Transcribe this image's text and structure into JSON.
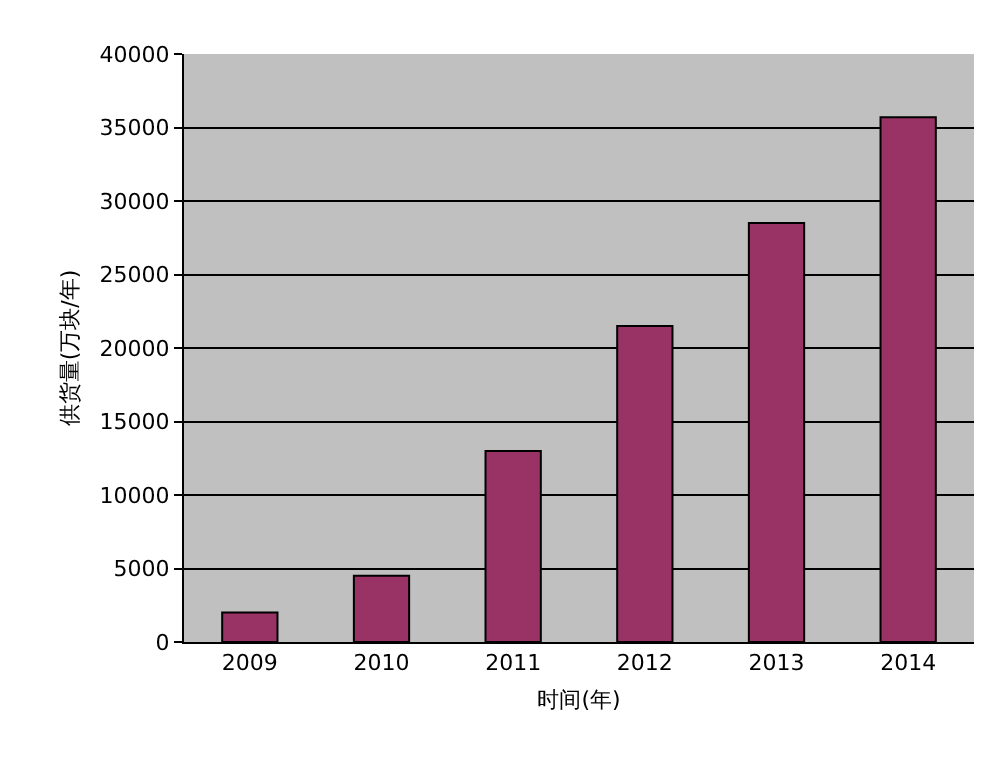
{
  "chart_data": {
    "type": "bar",
    "xlabel": "时间(年)",
    "ylabel": "供货量(万块/年)",
    "categories": [
      "2009",
      "2010",
      "2011",
      "2012",
      "2013",
      "2014"
    ],
    "values": [
      2000,
      4500,
      13000,
      21500,
      28500,
      35700
    ],
    "color": "#993366",
    "ylim": [
      0,
      40000
    ],
    "yticks": [
      0,
      5000,
      10000,
      15000,
      20000,
      25000,
      30000,
      35000,
      40000
    ],
    "grid": "y"
  }
}
